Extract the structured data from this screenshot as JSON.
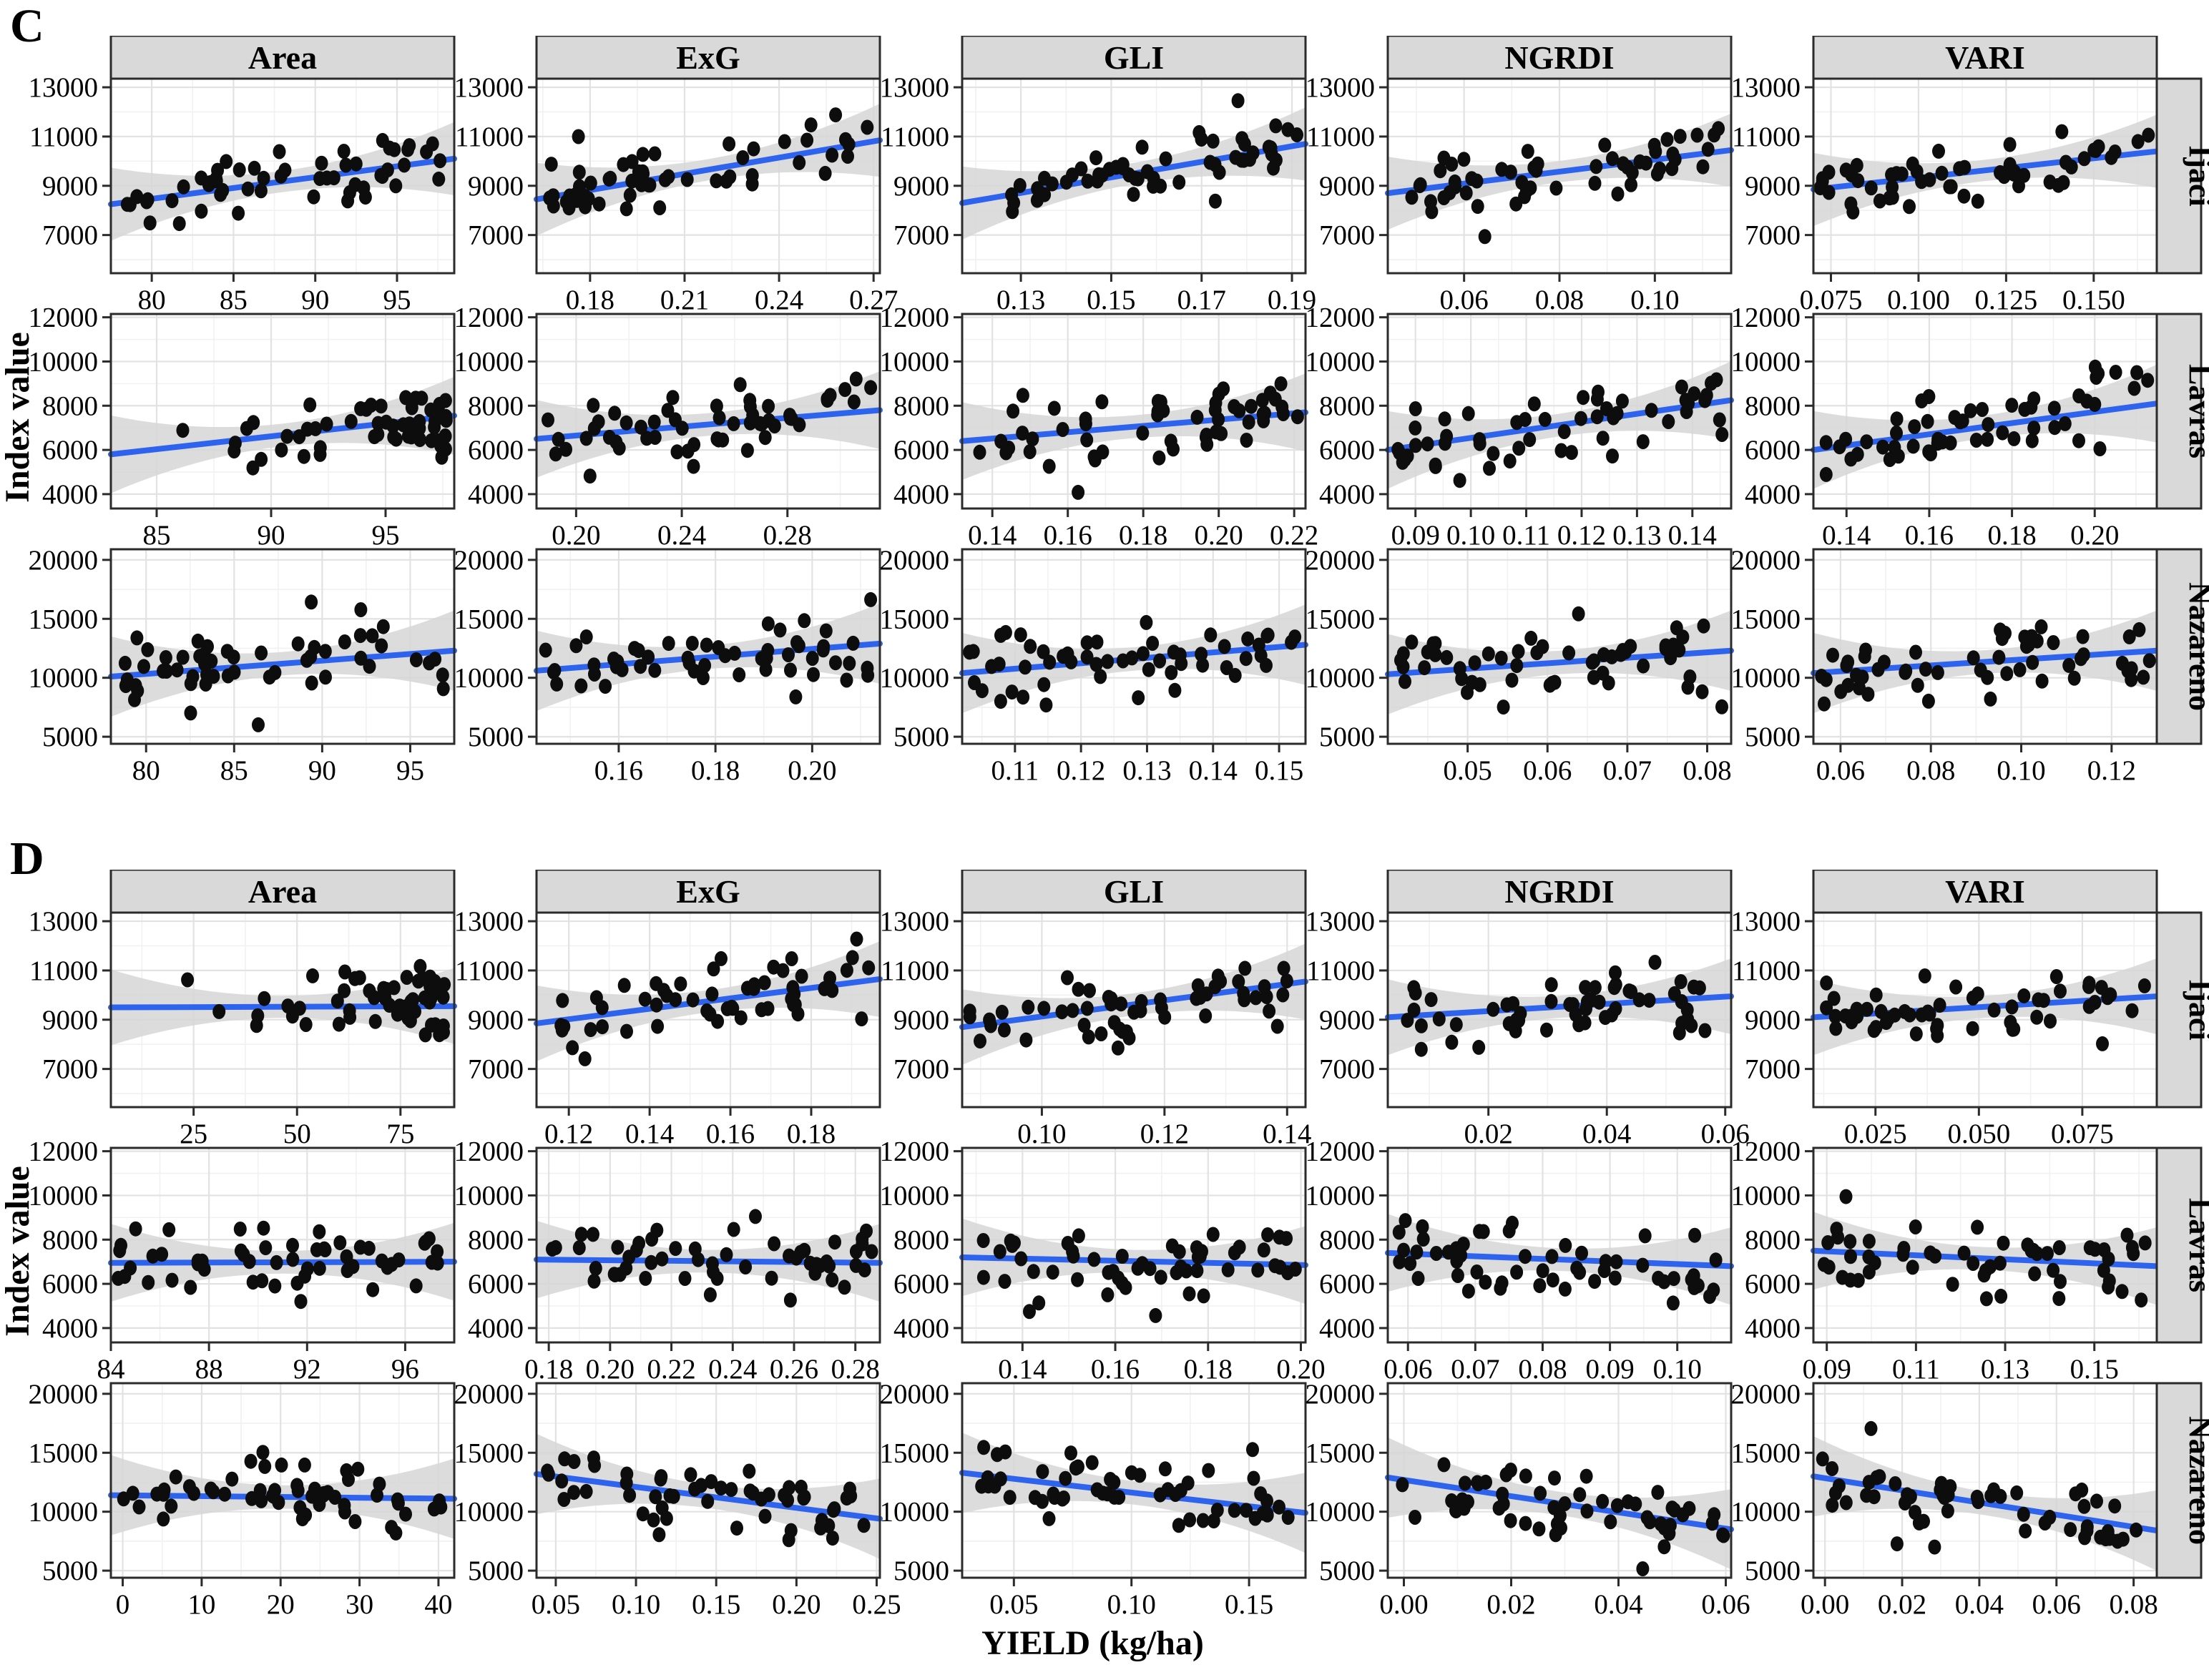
{
  "figure": {
    "xlab": "YIELD (kg/ha)",
    "ylab": "Index value",
    "colors": {
      "trend": "#2e63ee",
      "band": "#d6d6d6",
      "point": "#0d0d0d",
      "strip_bg": "#d9d9d9",
      "border": "#2b2b2b",
      "grid_major": "#e2e2e2",
      "grid_minor": "#f1f1f1",
      "plot_bg": "#ffffff"
    },
    "chart_data": {
      "type": "scatter",
      "note": "Faceted scatter plots of Index value vs YIELD with linear fit (blue) and confidence band (gray). Trend endpoints in data units; points are dense unlabeled clouds approximated by seeded scatter around the trend.",
      "panels": [
        {
          "label": "C",
          "show_xlab": false,
          "columns": [
            "Area",
            "ExG",
            "GLI",
            "NGRDI",
            "VARI"
          ],
          "rows": [
            {
              "name": "Ijaci",
              "y_ticks": [
                7000,
                9000,
                11000,
                13000
              ],
              "y_range": [
                5450,
                13350
              ],
              "spread": 1350
            },
            {
              "name": "Lavras",
              "y_ticks": [
                4000,
                6000,
                8000,
                10000,
                12000
              ],
              "y_range": [
                3350,
                12150
              ],
              "spread": 1600
            },
            {
              "name": "Nazareno",
              "y_ticks": [
                5000,
                10000,
                15000,
                20000
              ],
              "y_range": [
                4400,
                20900
              ],
              "spread": 3100
            }
          ],
          "cells": [
            [
              {
                "xr": [
                  77.5,
                  98.5
                ],
                "xt": [
                  80,
                  85,
                  90,
                  95
                ],
                "f": 0,
                "tr": [
                  8250,
                  10100
                ],
                "n": 55,
                "s": 1,
                "b": null
              },
              {
                "xr": [
                  0.163,
                  0.272
                ],
                "xt": [
                  0.18,
                  0.21,
                  0.24,
                  0.27
                ],
                "f": 2,
                "tr": [
                  8450,
                  10850
                ],
                "n": 55,
                "s": 2,
                "b": null
              },
              {
                "xr": [
                  0.117,
                  0.193
                ],
                "xt": [
                  0.13,
                  0.15,
                  0.17,
                  0.19
                ],
                "f": 2,
                "tr": [
                  8300,
                  10700
                ],
                "n": 55,
                "s": 3,
                "b": null
              },
              {
                "xr": [
                  0.044,
                  0.116
                ],
                "xt": [
                  0.06,
                  0.08,
                  0.1
                ],
                "f": 2,
                "tr": [
                  8700,
                  10450
                ],
                "n": 55,
                "s": 4,
                "b": null
              },
              {
                "xr": [
                  0.07,
                  0.168
                ],
                "xt": [
                  0.075,
                  0.1,
                  0.125,
                  0.15
                ],
                "f": 3,
                "tr": [
                  8850,
                  10400
                ],
                "n": 55,
                "s": 5,
                "b": null
              }
            ],
            [
              {
                "xr": [
                  83,
                  98
                ],
                "xt": [
                  85,
                  90,
                  95
                ],
                "f": 0,
                "tr": [
                  5800,
                  7550
                ],
                "n": 55,
                "s": 6,
                "b": "r"
              },
              {
                "xr": [
                  0.185,
                  0.315
                ],
                "xt": [
                  0.2,
                  0.24,
                  0.28
                ],
                "f": 2,
                "tr": [
                  6500,
                  7800
                ],
                "n": 55,
                "s": 7,
                "b": null
              },
              {
                "xr": [
                  0.132,
                  0.223
                ],
                "xt": [
                  0.14,
                  0.16,
                  0.18,
                  0.2,
                  0.22
                ],
                "f": 2,
                "tr": [
                  6400,
                  7700
                ],
                "n": 55,
                "s": 8,
                "b": null
              },
              {
                "xr": [
                  0.085,
                  0.147
                ],
                "xt": [
                  0.09,
                  0.1,
                  0.11,
                  0.12,
                  0.13,
                  0.14
                ],
                "f": 2,
                "tr": [
                  6000,
                  8250
                ],
                "n": 55,
                "s": 9,
                "b": null
              },
              {
                "xr": [
                  0.132,
                  0.215
                ],
                "xt": [
                  0.14,
                  0.16,
                  0.18,
                  0.2
                ],
                "f": 2,
                "tr": [
                  6000,
                  8100
                ],
                "n": 55,
                "s": 10,
                "b": null
              }
            ],
            [
              {
                "xr": [
                  78,
                  97.5
                ],
                "xt": [
                  80,
                  85,
                  90,
                  95
                ],
                "f": 0,
                "tr": [
                  10100,
                  12300
                ],
                "n": 55,
                "s": 11,
                "b": null
              },
              {
                "xr": [
                  0.143,
                  0.214
                ],
                "xt": [
                  0.16,
                  0.18,
                  0.2
                ],
                "f": 2,
                "tr": [
                  10600,
                  12900
                ],
                "n": 55,
                "s": 12,
                "b": null
              },
              {
                "xr": [
                  0.102,
                  0.154
                ],
                "xt": [
                  0.11,
                  0.12,
                  0.13,
                  0.14,
                  0.15
                ],
                "f": 2,
                "tr": [
                  10400,
                  12800
                ],
                "n": 55,
                "s": 13,
                "b": null
              },
              {
                "xr": [
                  0.04,
                  0.083
                ],
                "xt": [
                  0.05,
                  0.06,
                  0.07,
                  0.08
                ],
                "f": 2,
                "tr": [
                  10300,
                  12300
                ],
                "n": 55,
                "s": 14,
                "b": null
              },
              {
                "xr": [
                  0.054,
                  0.13
                ],
                "xt": [
                  0.06,
                  0.08,
                  0.1,
                  0.12
                ],
                "f": 2,
                "tr": [
                  10400,
                  12300
                ],
                "n": 55,
                "s": 15,
                "b": null
              }
            ]
          ]
        },
        {
          "label": "D",
          "show_xlab": true,
          "columns": [
            "Area",
            "ExG",
            "GLI",
            "NGRDI",
            "VARI"
          ],
          "rows": [
            {
              "name": "Ijaci",
              "y_ticks": [
                7000,
                9000,
                11000,
                13000
              ],
              "y_range": [
                5450,
                13350
              ],
              "spread": 1400
            },
            {
              "name": "Lavras",
              "y_ticks": [
                4000,
                6000,
                8000,
                10000,
                12000
              ],
              "y_range": [
                3350,
                12150
              ],
              "spread": 1600
            },
            {
              "name": "Nazareno",
              "y_ticks": [
                5000,
                10000,
                15000,
                20000
              ],
              "y_range": [
                4400,
                20900
              ],
              "spread": 3100
            }
          ],
          "cells": [
            [
              {
                "xr": [
                  5,
                  88
                ],
                "xt": [
                  25,
                  50,
                  75
                ],
                "f": 0,
                "tr": [
                  9500,
                  9550
                ],
                "n": 55,
                "s": 16,
                "b": "r"
              },
              {
                "xr": [
                  0.112,
                  0.197
                ],
                "xt": [
                  0.12,
                  0.14,
                  0.16,
                  0.18
                ],
                "f": 2,
                "tr": [
                  8850,
                  10650
                ],
                "n": 55,
                "s": 17,
                "b": null
              },
              {
                "xr": [
                  0.087,
                  0.143
                ],
                "xt": [
                  0.1,
                  0.12,
                  0.14
                ],
                "f": 2,
                "tr": [
                  8700,
                  10550
                ],
                "n": 55,
                "s": 18,
                "b": null
              },
              {
                "xr": [
                  0.003,
                  0.061
                ],
                "xt": [
                  0.02,
                  0.04,
                  0.06
                ],
                "f": 2,
                "tr": [
                  9100,
                  9950
                ],
                "n": 55,
                "s": 19,
                "b": null
              },
              {
                "xr": [
                  0.01,
                  0.093
                ],
                "xt": [
                  0.025,
                  0.05,
                  0.075
                ],
                "f": 3,
                "tr": [
                  9100,
                  9950
                ],
                "n": 55,
                "s": 20,
                "b": null
              }
            ],
            [
              {
                "xr": [
                  84,
                  98
                ],
                "xt": [
                  84,
                  88,
                  92,
                  96
                ],
                "f": 0,
                "tr": [
                  6950,
                  7000
                ],
                "n": 55,
                "s": 21,
                "b": null
              },
              {
                "xr": [
                  0.176,
                  0.288
                ],
                "xt": [
                  0.18,
                  0.2,
                  0.22,
                  0.24,
                  0.26,
                  0.28
                ],
                "f": 2,
                "tr": [
                  7100,
                  6950
                ],
                "n": 55,
                "s": 22,
                "b": null
              },
              {
                "xr": [
                  0.127,
                  0.201
                ],
                "xt": [
                  0.14,
                  0.16,
                  0.18,
                  0.2
                ],
                "f": 2,
                "tr": [
                  7200,
                  6850
                ],
                "n": 55,
                "s": 23,
                "b": null
              },
              {
                "xr": [
                  0.057,
                  0.108
                ],
                "xt": [
                  0.06,
                  0.07,
                  0.08,
                  0.09,
                  0.1
                ],
                "f": 2,
                "tr": [
                  7400,
                  6800
                ],
                "n": 55,
                "s": 24,
                "b": null
              },
              {
                "xr": [
                  0.087,
                  0.164
                ],
                "xt": [
                  0.09,
                  0.11,
                  0.13,
                  0.15
                ],
                "f": 2,
                "tr": [
                  7500,
                  6800
                ],
                "n": 55,
                "s": 25,
                "b": null
              }
            ],
            [
              {
                "xr": [
                  -1.5,
                  42
                ],
                "xt": [
                  0,
                  10,
                  20,
                  30,
                  40
                ],
                "f": 0,
                "tr": [
                  11400,
                  11100
                ],
                "n": 55,
                "s": 26,
                "b": null
              },
              {
                "xr": [
                  0.038,
                  0.252
                ],
                "xt": [
                  0.05,
                  0.1,
                  0.15,
                  0.2,
                  0.25
                ],
                "f": 2,
                "tr": [
                  13200,
                  9400
                ],
                "n": 55,
                "s": 27,
                "b": null
              },
              {
                "xr": [
                  0.028,
                  0.174
                ],
                "xt": [
                  0.05,
                  0.1,
                  0.15
                ],
                "f": 2,
                "tr": [
                  13300,
                  9900
                ],
                "n": 55,
                "s": 28,
                "b": null
              },
              {
                "xr": [
                  -0.003,
                  0.061
                ],
                "xt": [
                  0.0,
                  0.02,
                  0.04,
                  0.06
                ],
                "f": 2,
                "tr": [
                  12900,
                  8500
                ],
                "n": 55,
                "s": 29,
                "b": null
              },
              {
                "xr": [
                  -0.003,
                  0.086
                ],
                "xt": [
                  0.0,
                  0.02,
                  0.04,
                  0.06,
                  0.08
                ],
                "f": 2,
                "tr": [
                  13000,
                  8400
                ],
                "n": 55,
                "s": 30,
                "b": null
              }
            ]
          ]
        }
      ]
    }
  }
}
